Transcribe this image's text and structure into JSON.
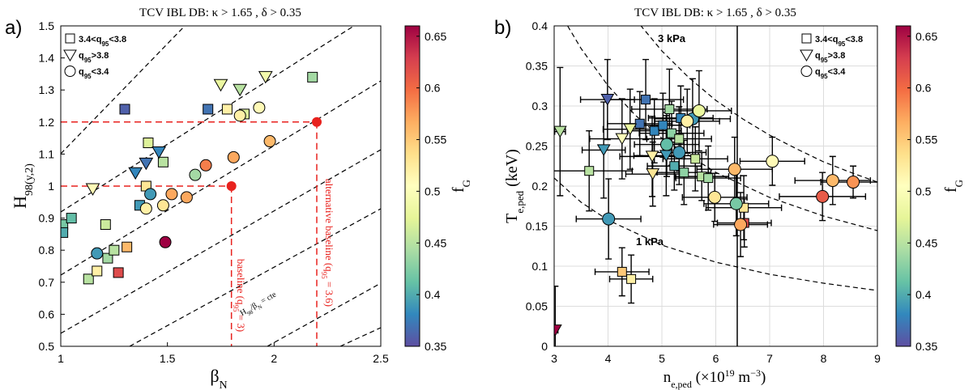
{
  "chart_data": [
    {
      "type": "scatter",
      "panel": "a)",
      "title": "TCV IBL DB: κ > 1.65 , δ > 0.35",
      "xlabel": [
        {
          "text": "β"
        },
        {
          "sub": "N"
        }
      ],
      "ylabel": [
        {
          "text": "H"
        },
        {
          "sub": "98(y,2)"
        }
      ],
      "xlim": [
        1,
        2.5
      ],
      "ylim": [
        0.5,
        1.5
      ],
      "xticks": [
        1,
        1.5,
        2,
        2.5
      ],
      "yticks": [
        0.5,
        0.6,
        0.7,
        0.8,
        0.9,
        1,
        1.1,
        1.2,
        1.3,
        1.4,
        1.5
      ],
      "grid": false,
      "legend": "upper-left",
      "colorbar": {
        "label": [
          {
            "text": "f"
          },
          {
            "sub": "G"
          }
        ],
        "clim": [
          0.35,
          0.66
        ],
        "ticks": [
          0.35,
          0.4,
          0.45,
          0.5,
          0.55,
          0.6,
          0.65
        ],
        "colormap": [
          "#5e4fa2",
          "#3288bd",
          "#66c2a5",
          "#abdda4",
          "#e6f598",
          "#ffffbf",
          "#fee08b",
          "#fdae61",
          "#f46d43",
          "#d53e4f",
          "#9e0142"
        ]
      },
      "series": [
        {
          "name": [
            {
              "text": "3.4<q"
            },
            {
              "sub": "95"
            },
            {
              "text": "<3.8"
            }
          ],
          "marker": "square",
          "x": [
            1.01,
            1.01,
            1.05,
            1.13,
            1.17,
            1.21,
            1.22,
            1.25,
            1.27,
            1.31,
            1.3,
            1.37,
            1.4,
            1.41,
            1.48,
            1.69,
            1.78,
            1.86,
            2.18
          ],
          "values": [
            0.88,
            0.855,
            0.9,
            0.71,
            0.735,
            0.88,
            0.775,
            0.8,
            0.73,
            0.81,
            1.24,
            0.94,
            1.0,
            1.135,
            1.075,
            1.24,
            1.24,
            1.225,
            1.34
          ],
          "color_values": [
            0.42,
            0.4,
            0.41,
            0.45,
            0.52,
            0.46,
            0.44,
            0.45,
            0.62,
            0.56,
            0.36,
            0.39,
            0.53,
            0.47,
            0.45,
            0.37,
            0.52,
            0.47,
            0.44
          ]
        },
        {
          "name": [
            {
              "text": "q"
            },
            {
              "sub": "95"
            },
            {
              "text": ">3.8"
            }
          ],
          "marker": "triangle",
          "x": [
            1.15,
            1.35,
            1.4,
            1.46,
            1.75,
            1.84,
            1.96
          ],
          "values": [
            0.99,
            1.04,
            1.07,
            1.105,
            1.315,
            1.3,
            1.34
          ],
          "color_values": [
            0.51,
            0.38,
            0.37,
            0.38,
            0.48,
            0.45,
            0.49
          ]
        },
        {
          "name": [
            {
              "text": "q"
            },
            {
              "sub": "95"
            },
            {
              "text": "<3.4"
            }
          ],
          "marker": "circle",
          "x": [
            1.17,
            1.42,
            1.4,
            1.48,
            1.52,
            1.49,
            1.59,
            1.63,
            1.68,
            1.81,
            1.98,
            1.84,
            1.93
          ],
          "values": [
            0.79,
            0.975,
            0.93,
            0.94,
            0.975,
            0.825,
            0.965,
            1.035,
            1.065,
            1.09,
            1.14,
            1.22,
            1.245
          ],
          "color_values": [
            0.39,
            0.39,
            0.52,
            0.53,
            0.57,
            0.66,
            0.57,
            0.44,
            0.59,
            0.57,
            0.56,
            0.52,
            0.51
          ]
        }
      ],
      "reference_points": {
        "x": [
          1.8,
          2.2
        ],
        "values": [
          1.0,
          1.2
        ],
        "color": "#e8221e"
      },
      "annotations": [
        [
          {
            "text": "H"
          },
          {
            "sub": "98"
          },
          {
            "text": "/β"
          },
          {
            "sub": "N"
          },
          {
            "text": " = cte"
          }
        ],
        [
          {
            "text": "baseline (q"
          },
          {
            "sub": "95"
          },
          {
            "text": " = 3)"
          }
        ],
        [
          {
            "text": "alternative baseline (q"
          },
          {
            "sub": "95"
          },
          {
            "text": " = 3.6)"
          }
        ]
      ]
    },
    {
      "type": "scatter",
      "panel": "b)",
      "title": "TCV IBL DB: κ > 1.65 , δ > 0.35",
      "xlabel": [
        {
          "text": "n"
        },
        {
          "sub": "e,ped"
        },
        {
          "text": " (×10"
        },
        {
          "sup": "19"
        },
        {
          "text": " m"
        },
        {
          "sup": "−3"
        },
        {
          "text": ")"
        }
      ],
      "ylabel": [
        {
          "text": "T"
        },
        {
          "sub": "e,ped"
        },
        {
          "text": " (keV)"
        }
      ],
      "xlim": [
        3,
        9
      ],
      "ylim": [
        0,
        0.4
      ],
      "xticks": [
        3,
        4,
        5,
        6,
        7,
        8,
        9
      ],
      "yticks": [
        0,
        0.05,
        0.1,
        0.15,
        0.2,
        0.25,
        0.3,
        0.35,
        0.4
      ],
      "grid": true,
      "legend": "upper-right",
      "colorbar": {
        "label": [
          {
            "text": "f"
          },
          {
            "sub": "G"
          }
        ],
        "clim": [
          0.35,
          0.66
        ],
        "ticks": [
          0.35,
          0.4,
          0.45,
          0.5,
          0.55,
          0.6,
          0.65
        ],
        "colormap": [
          "#5e4fa2",
          "#3288bd",
          "#66c2a5",
          "#abdda4",
          "#e6f598",
          "#ffffbf",
          "#fee08b",
          "#fdae61",
          "#f46d43",
          "#d53e4f",
          "#9e0142"
        ]
      },
      "series": [
        {
          "name": [
            {
              "text": "3.4<q"
            },
            {
              "sub": "95"
            },
            {
              "text": "<3.8"
            }
          ],
          "marker": "square",
          "x": [
            3.65,
            4.26,
            4.43,
            4.7,
            4.59,
            4.86,
            5.14,
            5.35,
            5.02,
            5.18,
            5.23,
            5.32,
            5.41,
            5.62,
            5.74,
            5.86,
            6.53,
            6.52
          ],
          "values": [
            0.219,
            0.093,
            0.084,
            0.308,
            0.278,
            0.269,
            0.296,
            0.285,
            0.276,
            0.266,
            0.225,
            0.259,
            0.217,
            0.234,
            0.212,
            0.21,
            0.154,
            0.173
          ],
          "color_values": [
            0.45,
            0.55,
            0.52,
            0.37,
            0.37,
            0.38,
            0.44,
            0.38,
            0.38,
            0.43,
            0.4,
            0.45,
            0.43,
            0.46,
            0.45,
            0.44,
            0.62,
            0.53
          ],
          "xerr": [
            0.8,
            0.5,
            0.4,
            0.7,
            0.6,
            0.5,
            0.7,
            0.6,
            0.5,
            0.6,
            0.5,
            0.6,
            0.5,
            0.6,
            0.5,
            0.6,
            0.5,
            0.7
          ],
          "yerr": [
            0.05,
            0.03,
            0.03,
            0.05,
            0.04,
            0.04,
            0.05,
            0.04,
            0.04,
            0.04,
            0.03,
            0.04,
            0.04,
            0.04,
            0.03,
            0.04,
            0.03,
            0.04
          ]
        },
        {
          "name": [
            {
              "text": "q"
            },
            {
              "sub": "95"
            },
            {
              "text": ">3.8"
            }
          ],
          "marker": "triangle",
          "x": [
            3.11,
            3.99,
            3.92,
            4.26,
            4.41,
            4.82,
            4.83,
            5.08,
            3.02
          ],
          "values": [
            0.268,
            0.308,
            0.245,
            0.259,
            0.271,
            0.237,
            0.215,
            0.238,
            0.02
          ],
          "color_values": [
            0.45,
            0.36,
            0.39,
            0.5,
            0.48,
            0.52,
            0.53,
            0.39,
            0.66
          ],
          "xerr": [
            0.1,
            0.5,
            0.4,
            0.6,
            0.5,
            0.6,
            0.5,
            0.6,
            0.05
          ],
          "yerr": [
            0.08,
            0.05,
            0.06,
            0.05,
            0.05,
            0.05,
            0.04,
            0.05,
            0.055
          ]
        },
        {
          "name": [
            {
              "text": "q"
            },
            {
              "sub": "95"
            },
            {
              "text": "<3.4"
            }
          ],
          "marker": "circle",
          "x": [
            4.01,
            5.09,
            5.32,
            5.57,
            5.69,
            5.47,
            5.98,
            6.35,
            6.38,
            6.46,
            7.05,
            8.17,
            8.55,
            7.98
          ],
          "values": [
            0.159,
            0.252,
            0.242,
            0.284,
            0.294,
            0.281,
            0.186,
            0.221,
            0.178,
            0.152,
            0.231,
            0.207,
            0.205,
            0.187
          ],
          "color_values": [
            0.39,
            0.41,
            0.39,
            0.39,
            0.48,
            0.52,
            0.53,
            0.56,
            0.42,
            0.57,
            0.51,
            0.56,
            0.58,
            0.61
          ],
          "xerr": [
            0.6,
            0.6,
            0.5,
            0.7,
            0.6,
            0.6,
            0.6,
            0.7,
            0.6,
            0.5,
            0.6,
            0.7,
            0.6,
            0.8
          ],
          "yerr": [
            0.05,
            0.04,
            0.04,
            0.05,
            0.05,
            0.04,
            0.03,
            0.04,
            0.04,
            0.04,
            0.03,
            0.03,
            0.02,
            0.03
          ]
        }
      ],
      "annotations": [
        "3 kPa",
        "1 kPa"
      ]
    }
  ]
}
